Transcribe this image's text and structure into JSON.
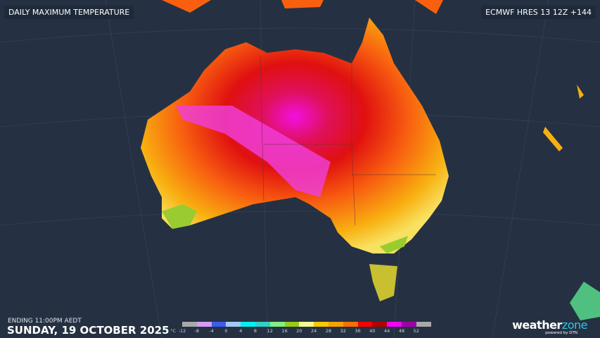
{
  "title": "DAILY MAXIMUM TEMPERATURE",
  "model": "ECMWF HRES 13 12Z +144",
  "ending": "ENDING 11:00PM AEDT",
  "date": "SUNDAY, 19 OCTOBER 2025",
  "legend": {
    "unit": "°C",
    "ticks": [
      "-12",
      "-8",
      "-4",
      "0",
      "4",
      "8",
      "12",
      "16",
      "20",
      "24",
      "28",
      "32",
      "36",
      "40",
      "44",
      "48",
      "52"
    ],
    "colors": [
      "#a9a9a9",
      "#d49cf2",
      "#3c5cf0",
      "#a7c8f5",
      "#00f0f0",
      "#30d0c8",
      "#80f080",
      "#98cc10",
      "#f8f890",
      "#f8c800",
      "#f8a000",
      "#f87000",
      "#f80000",
      "#b00000",
      "#f800f8",
      "#a000a8",
      "#a9a9a9"
    ]
  },
  "logo": {
    "brand_main": "weather",
    "brand_accent": "zone",
    "tagline": "powered by DTN"
  }
}
